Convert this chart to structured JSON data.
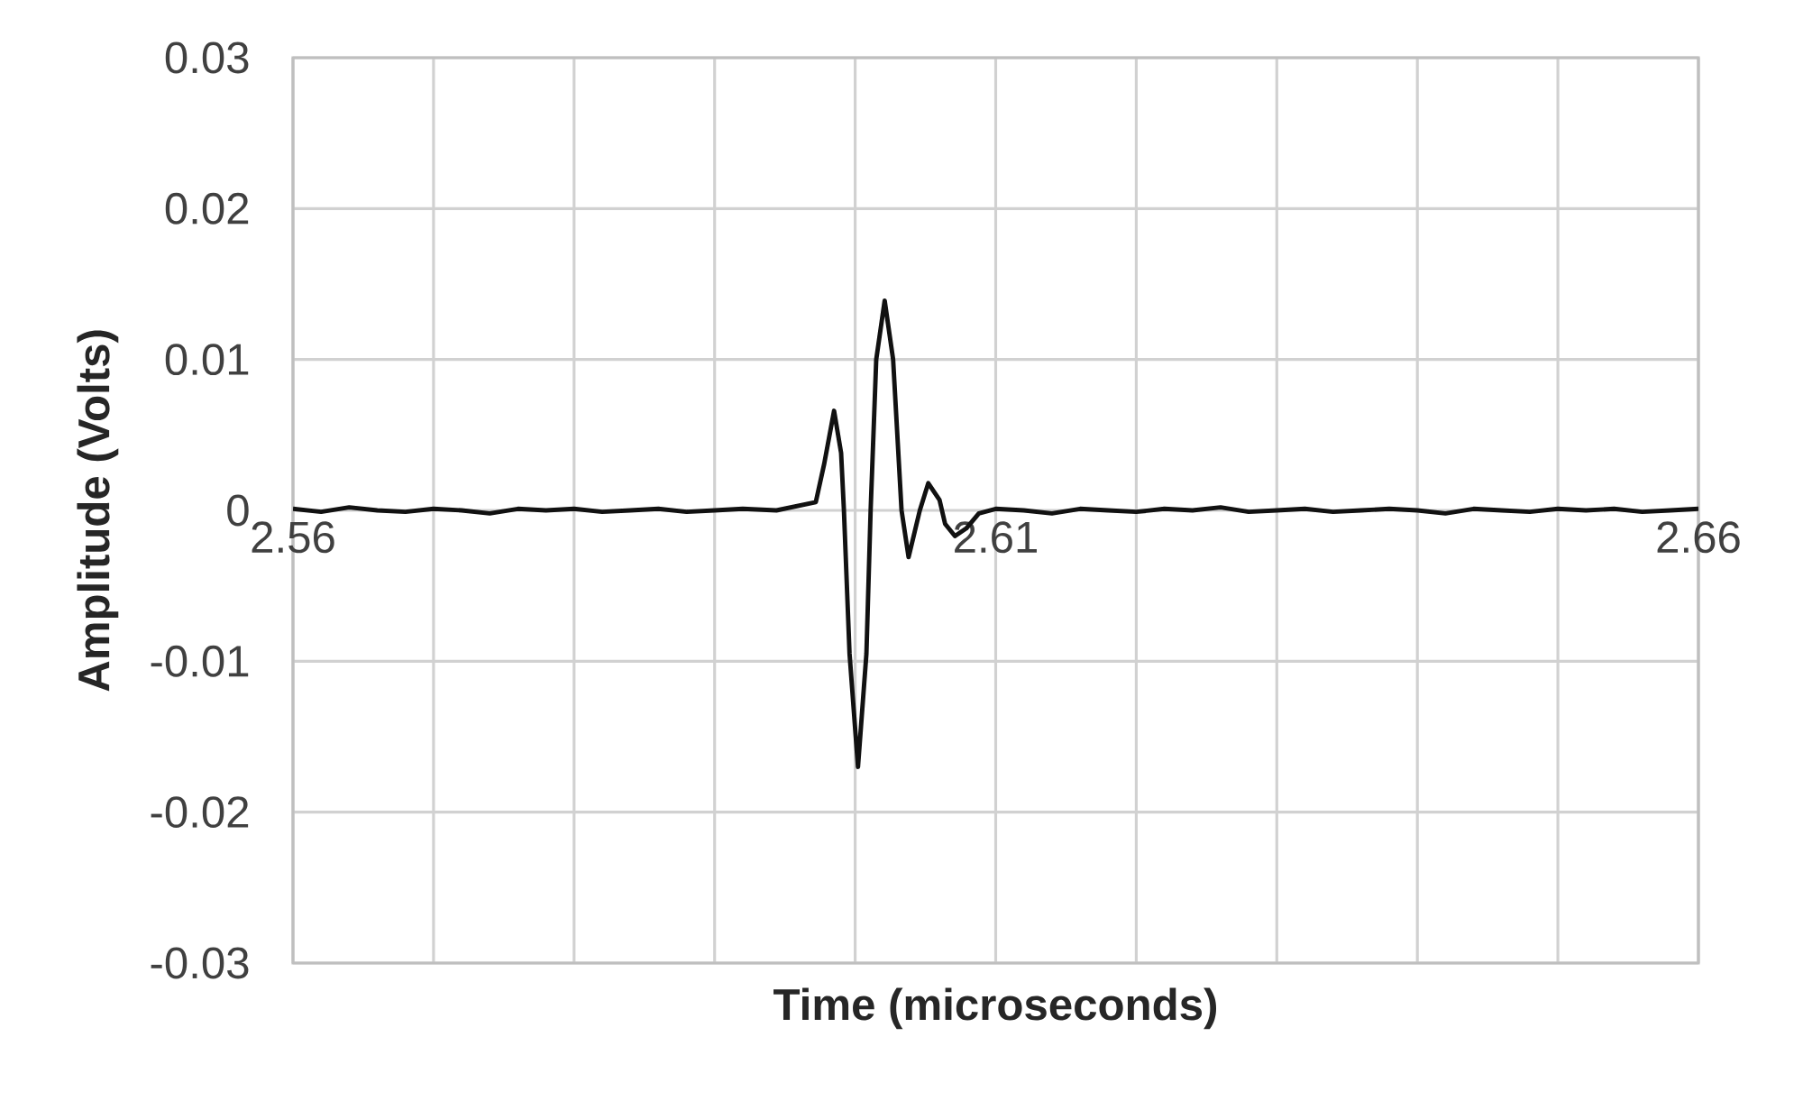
{
  "chart_data": {
    "type": "line",
    "xlabel": "Time (microseconds)",
    "ylabel": "Amplitude (Volts)",
    "color": "#111111",
    "x": [
      2.56,
      2.562,
      2.564,
      2.566,
      2.568,
      2.57,
      2.572,
      2.574,
      2.576,
      2.578,
      2.58,
      2.582,
      2.584,
      2.586,
      2.588,
      2.59,
      2.592,
      2.5944,
      2.5972,
      2.5978,
      2.5985,
      2.599,
      2.5992,
      2.5996,
      2.6002,
      2.6008,
      2.6011,
      2.6015,
      2.6021,
      2.6027,
      2.6033,
      2.6038,
      2.6046,
      2.6052,
      2.606,
      2.6064,
      2.6071,
      2.6079,
      2.6088,
      2.61,
      2.612,
      2.614,
      2.616,
      2.618,
      2.62,
      2.622,
      2.624,
      2.626,
      2.628,
      2.63,
      2.632,
      2.634,
      2.636,
      2.638,
      2.64,
      2.642,
      2.644,
      2.646,
      2.648,
      2.65,
      2.652,
      2.654,
      2.656,
      2.658,
      2.66
    ],
    "values": [
      0.0001,
      -0.0001,
      0.0002,
      0.0,
      -0.0001,
      0.0001,
      0.0,
      -0.0002,
      0.0001,
      0.0,
      0.0001,
      -0.0001,
      0.0,
      0.0001,
      -0.0001,
      0.0,
      0.0001,
      0.0,
      0.00055,
      0.0031,
      0.0066,
      0.0038,
      0.0,
      -0.0095,
      -0.017,
      -0.0095,
      0.0,
      0.01,
      0.0139,
      0.01,
      0.0,
      -0.0031,
      0.0,
      0.0018,
      0.0007,
      -0.0009,
      -0.0017,
      -0.0012,
      -0.0002,
      0.0001,
      0.0,
      -0.0002,
      0.0001,
      0.0,
      -0.0001,
      0.0001,
      0.0,
      0.0002,
      -0.0001,
      0.0,
      0.0001,
      -0.0001,
      0.0,
      0.0001,
      0.0,
      -0.0002,
      0.0001,
      0.0,
      -0.0001,
      0.0001,
      0.0,
      0.0001,
      -0.0001,
      0.0,
      0.0001
    ],
    "xlim": [
      2.56,
      2.66
    ],
    "ylim": [
      -0.03,
      0.03
    ],
    "xticks": [
      {
        "value": 2.56,
        "label": "2.56"
      },
      {
        "value": 2.57,
        "label": null
      },
      {
        "value": 2.58,
        "label": null
      },
      {
        "value": 2.59,
        "label": null
      },
      {
        "value": 2.6,
        "label": null
      },
      {
        "value": 2.61,
        "label": "2.61"
      },
      {
        "value": 2.62,
        "label": null
      },
      {
        "value": 2.63,
        "label": null
      },
      {
        "value": 2.64,
        "label": null
      },
      {
        "value": 2.65,
        "label": null
      },
      {
        "value": 2.66,
        "label": "2.66"
      }
    ],
    "yticks": [
      -0.03,
      -0.02,
      -0.01,
      0,
      0.01,
      0.02,
      0.03
    ],
    "grid": true
  }
}
